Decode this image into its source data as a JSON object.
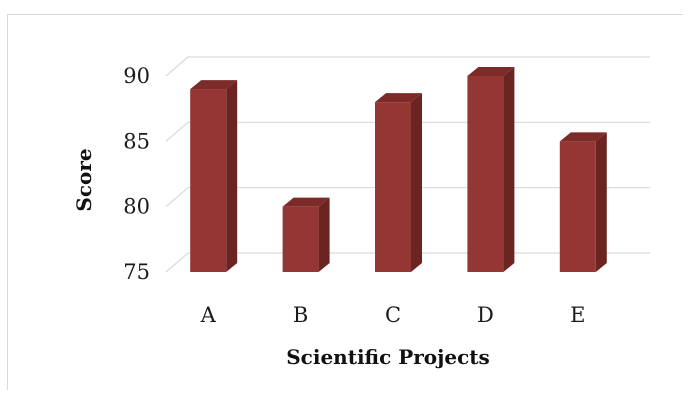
{
  "chart_data": {
    "type": "bar",
    "title": "",
    "xlabel": "Scientific Projects",
    "ylabel": "Score",
    "categories": [
      "A",
      "B",
      "C",
      "D",
      "E"
    ],
    "values": [
      89,
      80,
      88,
      90,
      85
    ],
    "ylim": [
      75,
      90
    ],
    "yticks": [
      "75",
      "80",
      "85",
      "90"
    ],
    "grid": true,
    "legend": "none",
    "style": "3d-columns",
    "colors": {
      "bar_front": "#943634",
      "bar_side": "#6b2422",
      "bar_top": "#7c2b29",
      "grid": "#d9d9d9"
    }
  }
}
